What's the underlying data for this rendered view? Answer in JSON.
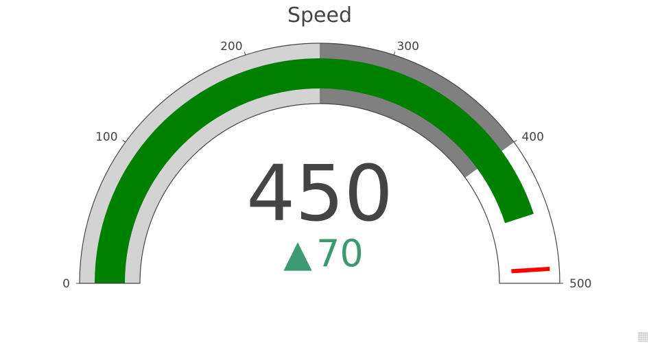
{
  "chart_data": {
    "type": "gauge",
    "title": "Speed",
    "value": 450,
    "delta": {
      "value": 70,
      "symbol": "▲",
      "color": "#3d9970"
    },
    "axis": {
      "range": [
        0,
        500
      ],
      "tickvals": [
        0,
        100,
        200,
        300,
        400,
        500
      ],
      "ticktext": [
        "0",
        "100",
        "200",
        "300",
        "400",
        "500"
      ]
    },
    "bar": {
      "value": 450,
      "color": "#008000"
    },
    "steps": [
      {
        "range": [
          0,
          250
        ],
        "color": "#d3d3d3"
      },
      {
        "range": [
          250,
          400
        ],
        "color": "#808080"
      }
    ],
    "threshold": {
      "value": 490,
      "color": "#ff0000"
    },
    "colors": {
      "outline": "#444444",
      "text": "#444444",
      "background": "#ffffff"
    }
  }
}
